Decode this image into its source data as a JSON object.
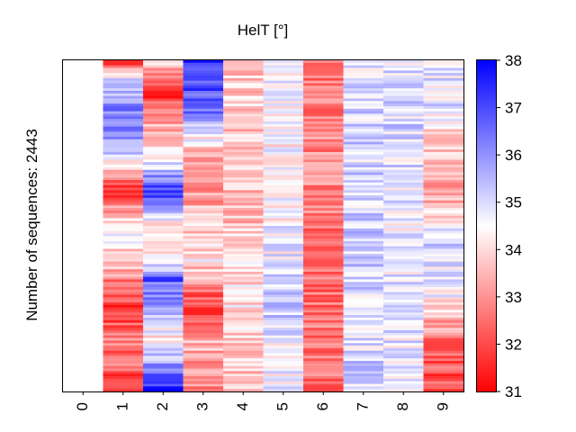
{
  "chart_data": {
    "type": "heatmap",
    "title": "HelT [°]",
    "ylabel": "Number of sequences: 2443",
    "xlabel": "",
    "x_ticks": [
      "0",
      "1",
      "2",
      "3",
      "4",
      "5",
      "6",
      "7",
      "8",
      "9"
    ],
    "n_sequences": 2443,
    "colorbar": {
      "min": 31,
      "max": 38,
      "center": 34.5,
      "ticks": [
        "31",
        "32",
        "33",
        "34",
        "35",
        "36",
        "37",
        "38"
      ],
      "colors": {
        "low": "#ff0000",
        "mid": "#ffffff",
        "high": "#0000ff"
      }
    },
    "column_profiles": [
      [
        [
          0,
          31.3
        ],
        [
          0.05,
          34.8
        ],
        [
          0.15,
          36.3
        ],
        [
          0.25,
          35.8
        ],
        [
          0.4,
          31.5
        ],
        [
          0.5,
          34.8
        ],
        [
          0.6,
          33.8
        ],
        [
          0.75,
          31.6
        ],
        [
          0.85,
          32.8
        ],
        [
          0.95,
          32.2
        ],
        [
          1,
          31.8
        ]
      ],
      [
        [
          0,
          33.8
        ],
        [
          0.1,
          31.6
        ],
        [
          0.2,
          33.5
        ],
        [
          0.3,
          34.5
        ],
        [
          0.4,
          37.2
        ],
        [
          0.5,
          34.2
        ],
        [
          0.6,
          34.0
        ],
        [
          0.66,
          36.8
        ],
        [
          0.75,
          35.5
        ],
        [
          0.85,
          34.2
        ],
        [
          0.95,
          36.5
        ],
        [
          1,
          37.5
        ]
      ],
      [
        [
          0,
          37.4
        ],
        [
          0.15,
          36.6
        ],
        [
          0.3,
          32.8
        ],
        [
          0.45,
          33.4
        ],
        [
          0.6,
          34.2
        ],
        [
          0.75,
          31.8
        ],
        [
          0.85,
          33.5
        ],
        [
          1,
          33.0
        ]
      ],
      [
        [
          0,
          33.8
        ],
        [
          0.2,
          33.8
        ],
        [
          0.4,
          33.5
        ],
        [
          0.6,
          34.0
        ],
        [
          0.8,
          34.2
        ],
        [
          0.9,
          33.8
        ],
        [
          1,
          33.6
        ]
      ],
      [
        [
          0,
          34.8
        ],
        [
          0.2,
          34.4
        ],
        [
          0.4,
          34.4
        ],
        [
          0.6,
          34.7
        ],
        [
          0.75,
          35.2
        ],
        [
          0.85,
          34.7
        ],
        [
          1,
          34.6
        ]
      ],
      [
        [
          0,
          32.5
        ],
        [
          0.2,
          32.8
        ],
        [
          0.4,
          33.0
        ],
        [
          0.6,
          32.4
        ],
        [
          0.8,
          32.7
        ],
        [
          1,
          32.6
        ]
      ],
      [
        [
          0,
          35.0
        ],
        [
          0.2,
          35.1
        ],
        [
          0.4,
          35.0
        ],
        [
          0.6,
          35.2
        ],
        [
          0.8,
          34.9
        ],
        [
          1,
          35.1
        ]
      ],
      [
        [
          0,
          34.8
        ],
        [
          0.2,
          35.0
        ],
        [
          0.4,
          34.8
        ],
        [
          0.6,
          34.7
        ],
        [
          0.8,
          34.9
        ],
        [
          1,
          34.6
        ]
      ],
      [
        [
          0,
          34.9
        ],
        [
          0.15,
          34.8
        ],
        [
          0.25,
          33.6
        ],
        [
          0.4,
          33.2
        ],
        [
          0.55,
          35.0
        ],
        [
          0.7,
          34.6
        ],
        [
          0.85,
          32.6
        ],
        [
          1,
          32.0
        ]
      ]
    ]
  }
}
